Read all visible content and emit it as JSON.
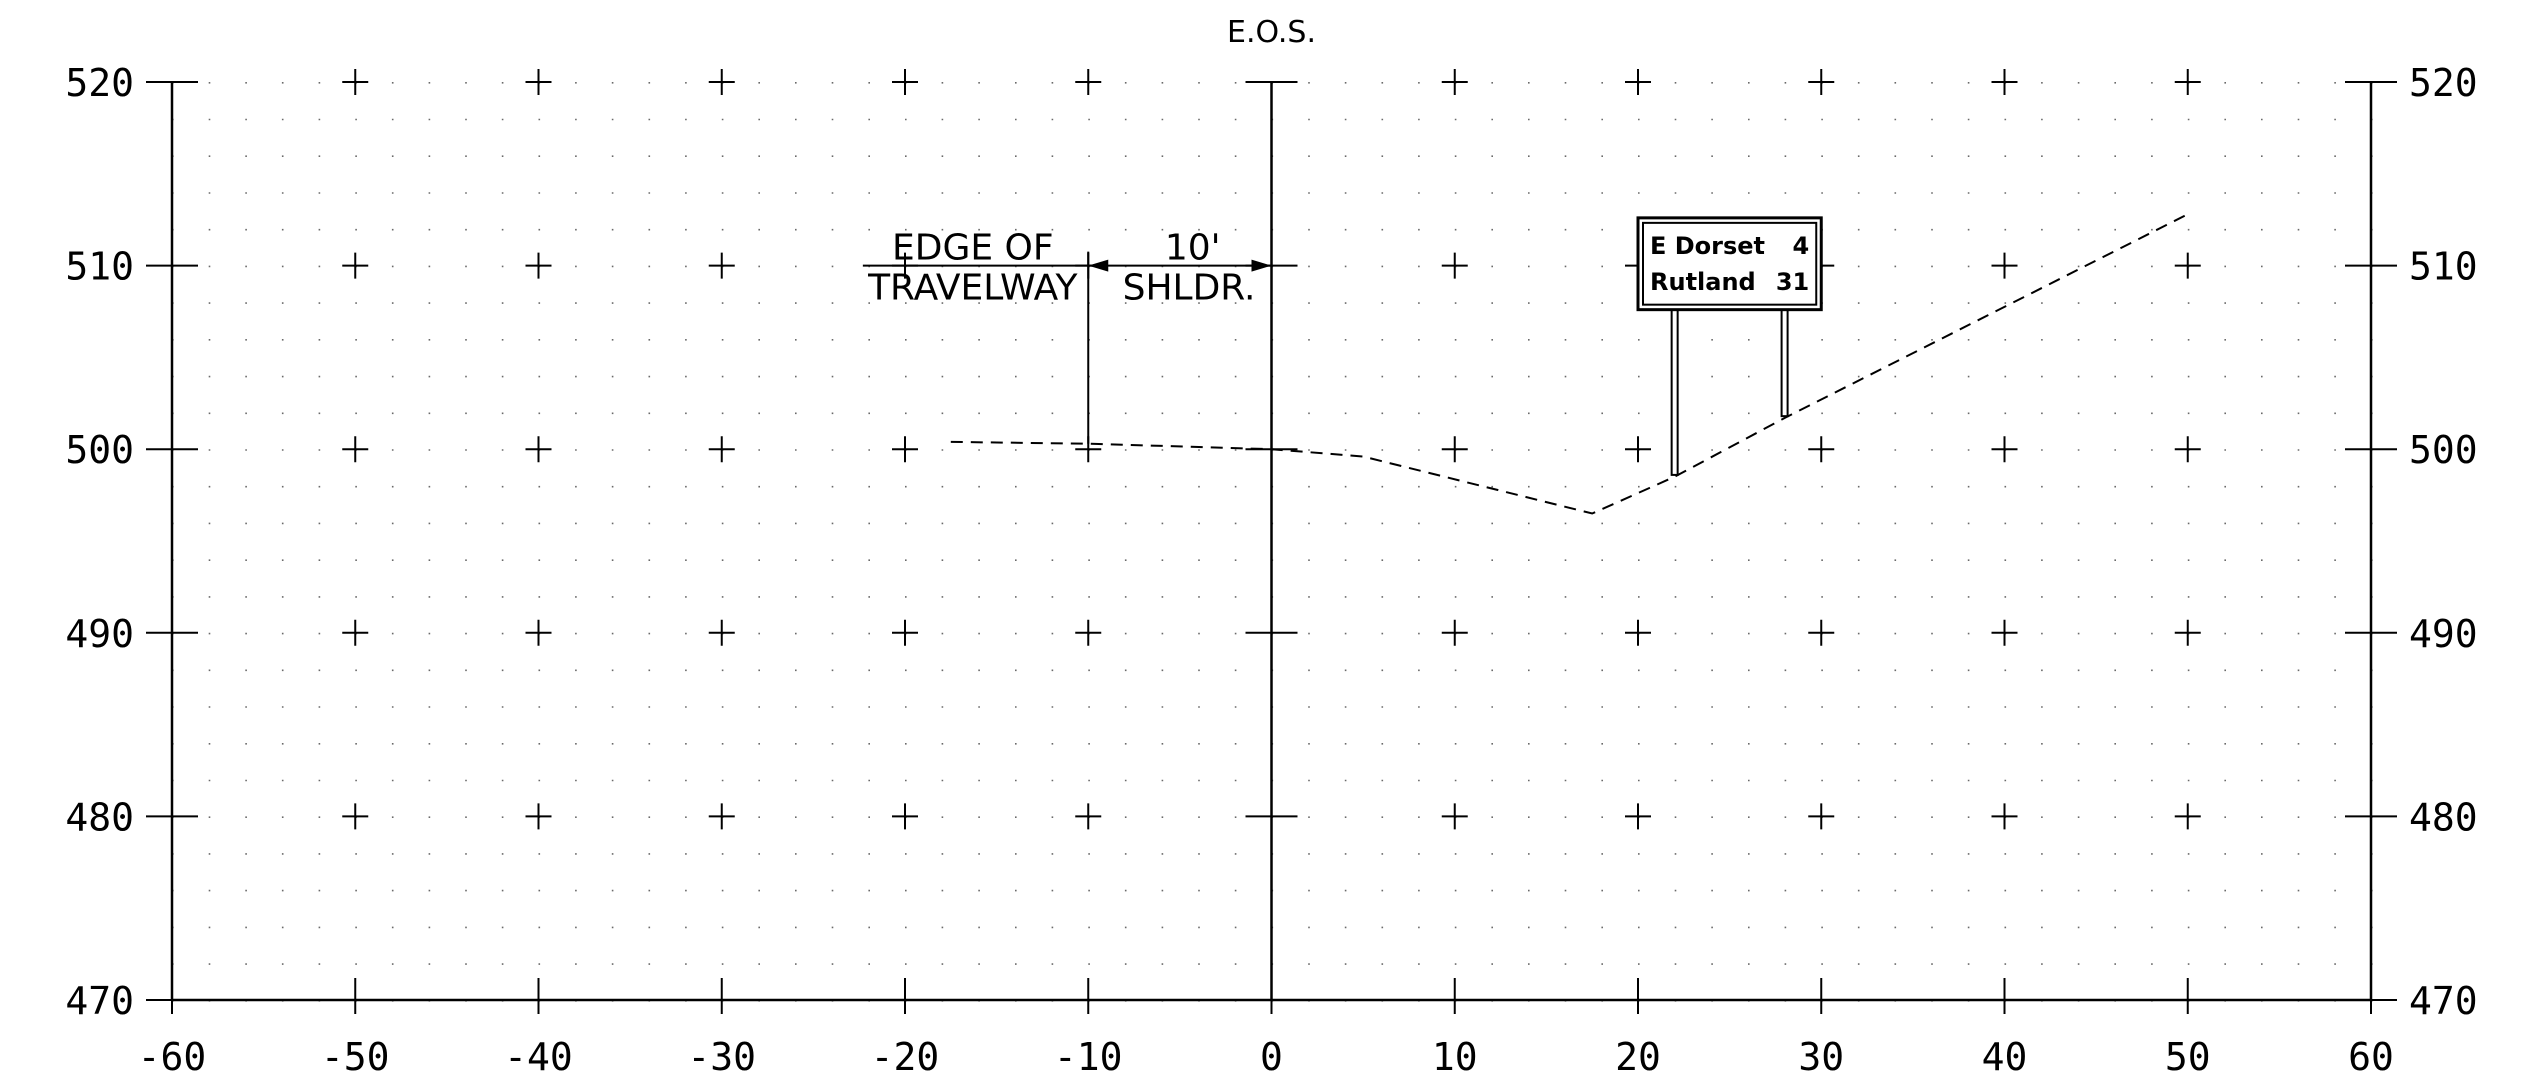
{
  "chart_data": {
    "type": "line",
    "title": "E.O.S.",
    "xlim": [
      -60,
      60
    ],
    "ylim": [
      470,
      520
    ],
    "x_ticks": [
      -60,
      -50,
      -40,
      -30,
      -20,
      -10,
      0,
      10,
      20,
      30,
      40,
      50,
      60
    ],
    "x_tick_labels": [
      "-60",
      "-50",
      "-40",
      "-30",
      "-20",
      "-10",
      "0",
      "10",
      "20",
      "30",
      "40",
      "50",
      "60"
    ],
    "y_ticks": [
      470,
      480,
      490,
      500,
      510,
      520
    ],
    "y_tick_labels": [
      "470",
      "480",
      "490",
      "500",
      "510",
      "520"
    ],
    "grid": "dotted",
    "series": [
      {
        "style": "dashed",
        "points": [
          [
            -17.5,
            500.4
          ],
          [
            -10,
            500.3
          ],
          [
            0,
            500.0
          ],
          [
            5,
            499.6
          ],
          [
            17.5,
            496.5
          ],
          [
            22,
            498.5
          ],
          [
            28,
            501.7
          ],
          [
            50,
            512.8
          ]
        ]
      }
    ],
    "annotations": {
      "edge_of_travelway": [
        "EDGE OF",
        "TRAVELWAY"
      ],
      "shoulder": [
        "10'",
        "SHLDR."
      ]
    },
    "sign": {
      "rows": [
        {
          "name": "E Dorset",
          "distance": "4"
        },
        {
          "name": "Rutland",
          "distance": "31"
        }
      ],
      "post_x": [
        22,
        28
      ]
    }
  }
}
